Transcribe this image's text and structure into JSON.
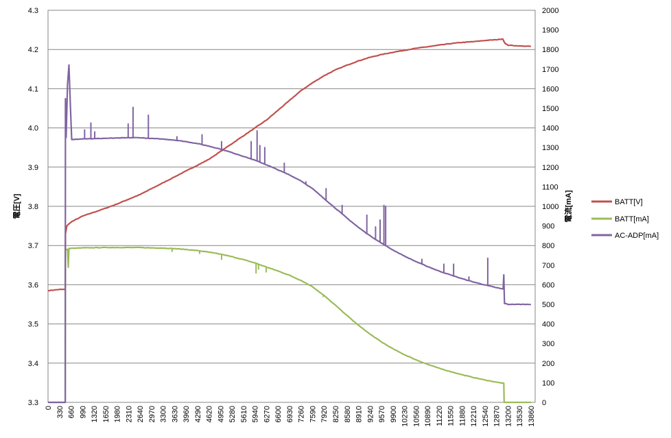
{
  "chart_data": {
    "type": "line",
    "title": "",
    "xlabel": "",
    "ylabel_left": "電圧[V]",
    "ylabel_right": "電流[mA]",
    "xlim": [
      0,
      13980
    ],
    "ylim_left": [
      3.3,
      4.3
    ],
    "ylim_right": [
      0,
      2000
    ],
    "grid": "horizontal",
    "legend_position": "right",
    "x_ticks": [
      0,
      330,
      660,
      990,
      1320,
      1650,
      1980,
      2310,
      2640,
      2970,
      3300,
      3630,
      3960,
      4290,
      4620,
      4950,
      5280,
      5610,
      5940,
      6270,
      6600,
      6930,
      7260,
      7590,
      7920,
      8250,
      8580,
      8910,
      9240,
      9570,
      9900,
      10230,
      10560,
      10890,
      11220,
      11550,
      11880,
      12210,
      12540,
      12870,
      13200,
      13530,
      13860
    ],
    "y_ticks_left": [
      "3.3",
      "3.4",
      "3.5",
      "3.6",
      "3.7",
      "3.8",
      "3.9",
      "4.0",
      "4.1",
      "4.2",
      "4.3"
    ],
    "y_ticks_right": [
      0,
      100,
      200,
      300,
      400,
      500,
      600,
      700,
      800,
      900,
      1000,
      1100,
      1200,
      1300,
      1400,
      1500,
      1600,
      1700,
      1800,
      1900,
      2000
    ],
    "series": [
      {
        "name": "BATT[V]",
        "color": "#C0504D",
        "axis": "left",
        "points": [
          [
            0,
            3.585
          ],
          [
            330,
            3.588
          ],
          [
            480,
            3.588
          ],
          [
            495,
            3.59
          ],
          [
            500,
            3.73
          ],
          [
            540,
            3.75
          ],
          [
            660,
            3.76
          ],
          [
            990,
            3.775
          ],
          [
            1320,
            3.785
          ],
          [
            1650,
            3.795
          ],
          [
            1980,
            3.806
          ],
          [
            2310,
            3.818
          ],
          [
            2640,
            3.83
          ],
          [
            2970,
            3.845
          ],
          [
            3300,
            3.86
          ],
          [
            3630,
            3.875
          ],
          [
            3960,
            3.89
          ],
          [
            4290,
            3.905
          ],
          [
            4620,
            3.92
          ],
          [
            4950,
            3.94
          ],
          [
            5280,
            3.96
          ],
          [
            5610,
            3.98
          ],
          [
            5940,
            4.0
          ],
          [
            6270,
            4.02
          ],
          [
            6600,
            4.045
          ],
          [
            6930,
            4.07
          ],
          [
            7260,
            4.095
          ],
          [
            7590,
            4.115
          ],
          [
            7920,
            4.133
          ],
          [
            8250,
            4.148
          ],
          [
            8580,
            4.16
          ],
          [
            8910,
            4.171
          ],
          [
            9240,
            4.18
          ],
          [
            9570,
            4.187
          ],
          [
            9900,
            4.193
          ],
          [
            10230,
            4.198
          ],
          [
            10560,
            4.203
          ],
          [
            10890,
            4.207
          ],
          [
            11220,
            4.211
          ],
          [
            11550,
            4.215
          ],
          [
            11880,
            4.218
          ],
          [
            12210,
            4.22
          ],
          [
            12540,
            4.223
          ],
          [
            12870,
            4.225
          ],
          [
            13050,
            4.227
          ],
          [
            13120,
            4.215
          ],
          [
            13200,
            4.211
          ],
          [
            13530,
            4.209
          ],
          [
            13860,
            4.208
          ]
        ]
      },
      {
        "name": "BATT[mA]",
        "color": "#9BBB59",
        "axis": "right",
        "points": [
          [
            0,
            0
          ],
          [
            480,
            0
          ],
          [
            495,
            0
          ],
          [
            500,
            780
          ],
          [
            560,
            780
          ],
          [
            580,
            690
          ],
          [
            600,
            785
          ],
          [
            990,
            788
          ],
          [
            1320,
            789
          ],
          [
            1650,
            790
          ],
          [
            1980,
            790
          ],
          [
            2310,
            790
          ],
          [
            2640,
            790
          ],
          [
            2970,
            788
          ],
          [
            3300,
            787
          ],
          [
            3630,
            784
          ],
          [
            3960,
            780
          ],
          [
            4290,
            774
          ],
          [
            4620,
            766
          ],
          [
            4950,
            756
          ],
          [
            5280,
            743
          ],
          [
            5610,
            728
          ],
          [
            5940,
            711
          ],
          [
            6270,
            690
          ],
          [
            6600,
            670
          ],
          [
            6930,
            648
          ],
          [
            7260,
            622
          ],
          [
            7590,
            590
          ],
          [
            7920,
            545
          ],
          [
            8250,
            495
          ],
          [
            8580,
            443
          ],
          [
            8910,
            393
          ],
          [
            9240,
            348
          ],
          [
            9570,
            308
          ],
          [
            9900,
            273
          ],
          [
            10230,
            243
          ],
          [
            10560,
            217
          ],
          [
            10890,
            194
          ],
          [
            11220,
            174
          ],
          [
            11550,
            157
          ],
          [
            11880,
            141
          ],
          [
            12210,
            127
          ],
          [
            12540,
            114
          ],
          [
            12870,
            103
          ],
          [
            13080,
            97
          ],
          [
            13090,
            0
          ],
          [
            13200,
            0
          ],
          [
            13530,
            0
          ],
          [
            13860,
            0
          ]
        ]
      },
      {
        "name": "AC-ADP[mA]",
        "color": "#8064A2",
        "axis": "right",
        "points": [
          [
            0,
            0
          ],
          [
            480,
            0
          ],
          [
            495,
            0
          ],
          [
            500,
            1550
          ],
          [
            520,
            1350
          ],
          [
            560,
            1620
          ],
          [
            600,
            1720
          ],
          [
            640,
            1520
          ],
          [
            680,
            1340
          ],
          [
            990,
            1345
          ],
          [
            1320,
            1345
          ],
          [
            1650,
            1347
          ],
          [
            1980,
            1348
          ],
          [
            2310,
            1350
          ],
          [
            2640,
            1350
          ],
          [
            2970,
            1346
          ],
          [
            3300,
            1343
          ],
          [
            3630,
            1338
          ],
          [
            3960,
            1330
          ],
          [
            4290,
            1320
          ],
          [
            4620,
            1307
          ],
          [
            4950,
            1292
          ],
          [
            5280,
            1274
          ],
          [
            5610,
            1255
          ],
          [
            5940,
            1235
          ],
          [
            6270,
            1212
          ],
          [
            6600,
            1186
          ],
          [
            6930,
            1160
          ],
          [
            7260,
            1130
          ],
          [
            7590,
            1090
          ],
          [
            7920,
            1040
          ],
          [
            8250,
            990
          ],
          [
            8580,
            940
          ],
          [
            8910,
            892
          ],
          [
            9240,
            850
          ],
          [
            9570,
            812
          ],
          [
            9900,
            777
          ],
          [
            10230,
            746
          ],
          [
            10560,
            718
          ],
          [
            10890,
            693
          ],
          [
            11220,
            670
          ],
          [
            11550,
            650
          ],
          [
            11880,
            631
          ],
          [
            12210,
            614
          ],
          [
            12540,
            599
          ],
          [
            12870,
            585
          ],
          [
            13060,
            578
          ],
          [
            13080,
            650
          ],
          [
            13100,
            505
          ],
          [
            13200,
            500
          ],
          [
            13530,
            500
          ],
          [
            13860,
            500
          ]
        ]
      }
    ],
    "spikes": [
      {
        "series": "AC-ADP[mA]",
        "x": 1050,
        "y": 1390
      },
      {
        "series": "AC-ADP[mA]",
        "x": 1230,
        "y": 1425
      },
      {
        "series": "AC-ADP[mA]",
        "x": 1340,
        "y": 1380
      },
      {
        "series": "AC-ADP[mA]",
        "x": 2300,
        "y": 1420
      },
      {
        "series": "AC-ADP[mA]",
        "x": 2440,
        "y": 1505
      },
      {
        "series": "AC-ADP[mA]",
        "x": 2880,
        "y": 1465
      },
      {
        "series": "AC-ADP[mA]",
        "x": 3700,
        "y": 1355
      },
      {
        "series": "AC-ADP[mA]",
        "x": 4420,
        "y": 1365
      },
      {
        "series": "AC-ADP[mA]",
        "x": 4980,
        "y": 1330
      },
      {
        "series": "AC-ADP[mA]",
        "x": 5830,
        "y": 1330
      },
      {
        "series": "AC-ADP[mA]",
        "x": 6000,
        "y": 1385
      },
      {
        "series": "AC-ADP[mA]",
        "x": 6080,
        "y": 1310
      },
      {
        "series": "AC-ADP[mA]",
        "x": 6220,
        "y": 1300
      },
      {
        "series": "AC-ADP[mA]",
        "x": 6780,
        "y": 1220
      },
      {
        "series": "AC-ADP[mA]",
        "x": 7400,
        "y": 1125
      },
      {
        "series": "AC-ADP[mA]",
        "x": 7980,
        "y": 1090
      },
      {
        "series": "AC-ADP[mA]",
        "x": 8440,
        "y": 1005
      },
      {
        "series": "AC-ADP[mA]",
        "x": 9150,
        "y": 955
      },
      {
        "series": "AC-ADP[mA]",
        "x": 9400,
        "y": 895
      },
      {
        "series": "AC-ADP[mA]",
        "x": 9530,
        "y": 930
      },
      {
        "series": "AC-ADP[mA]",
        "x": 9640,
        "y": 1005
      },
      {
        "series": "AC-ADP[mA]",
        "x": 9690,
        "y": 1000
      },
      {
        "series": "AC-ADP[mA]",
        "x": 10730,
        "y": 730
      },
      {
        "series": "AC-ADP[mA]",
        "x": 11360,
        "y": 705
      },
      {
        "series": "AC-ADP[mA]",
        "x": 11640,
        "y": 705
      },
      {
        "series": "AC-ADP[mA]",
        "x": 12080,
        "y": 640
      },
      {
        "series": "AC-ADP[mA]",
        "x": 12620,
        "y": 735
      },
      {
        "series": "BATT[mA]",
        "x": 3560,
        "y": 770
      },
      {
        "series": "BATT[mA]",
        "x": 4350,
        "y": 760
      },
      {
        "series": "BATT[mA]",
        "x": 4980,
        "y": 730
      },
      {
        "series": "BATT[mA]",
        "x": 5970,
        "y": 660
      },
      {
        "series": "BATT[mA]",
        "x": 6040,
        "y": 680
      },
      {
        "series": "BATT[mA]",
        "x": 6260,
        "y": 665
      },
      {
        "series": "BATT[mA]",
        "x": 7900,
        "y": 540
      }
    ]
  }
}
